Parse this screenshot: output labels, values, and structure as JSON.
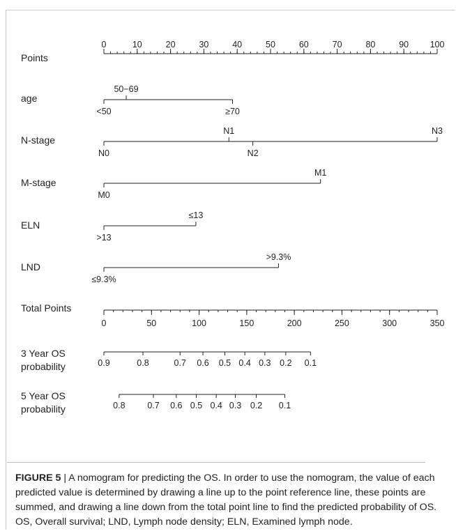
{
  "chart_data": {
    "type": "nomogram",
    "points_scale": {
      "label": "Points",
      "min": 0,
      "max": 100,
      "major_ticks": [
        0,
        10,
        20,
        30,
        40,
        50,
        60,
        70,
        80,
        90,
        100
      ],
      "minor_step": 2
    },
    "variables": [
      {
        "name": "age",
        "line_points": [
          0,
          38.6
        ],
        "levels": [
          {
            "label": "<50",
            "points": 0,
            "side": "below"
          },
          {
            "label": "50−69",
            "points": 6.7,
            "side": "above"
          },
          {
            "label": "≥70",
            "points": 38.6,
            "side": "below"
          }
        ]
      },
      {
        "name": "N-stage",
        "line_points": [
          0,
          100
        ],
        "levels": [
          {
            "label": "N0",
            "points": 0,
            "side": "below"
          },
          {
            "label": "N1",
            "points": 37.5,
            "side": "above"
          },
          {
            "label": "N2",
            "points": 44.7,
            "side": "below"
          },
          {
            "label": "N3",
            "points": 100,
            "side": "above"
          }
        ]
      },
      {
        "name": "M-stage",
        "line_points": [
          0,
          65.0
        ],
        "levels": [
          {
            "label": "M0",
            "points": 0,
            "side": "below"
          },
          {
            "label": "M1",
            "points": 65.0,
            "side": "above"
          }
        ]
      },
      {
        "name": "ELN",
        "line_points": [
          0,
          27.6
        ],
        "levels": [
          {
            "label": ">13",
            "points": 0,
            "side": "below"
          },
          {
            "label": "≤13",
            "points": 27.6,
            "side": "above"
          }
        ]
      },
      {
        "name": "LND",
        "line_points": [
          0,
          52.4
        ],
        "levels": [
          {
            "label": "≤9.3%",
            "points": 0,
            "side": "below"
          },
          {
            "label": ">9.3%",
            "points": 52.4,
            "side": "above"
          }
        ]
      }
    ],
    "total_points_scale": {
      "label": "Total Points",
      "min": 0,
      "max": 350,
      "major_ticks": [
        0,
        50,
        100,
        150,
        200,
        250,
        300,
        350
      ],
      "minor_step": 10
    },
    "probability_scales": [
      {
        "label_lines": [
          "3 Year OS",
          "probability"
        ],
        "ticks": [
          {
            "label": "0.9",
            "total_points": 0
          },
          {
            "label": "0.8",
            "total_points": 41
          },
          {
            "label": "0.7",
            "total_points": 80
          },
          {
            "label": "0.6",
            "total_points": 104
          },
          {
            "label": "0.5",
            "total_points": 127
          },
          {
            "label": "0.4",
            "total_points": 148
          },
          {
            "label": "0.3",
            "total_points": 169
          },
          {
            "label": "0.2",
            "total_points": 191
          },
          {
            "label": "0.1",
            "total_points": 217
          }
        ]
      },
      {
        "label_lines": [
          "5 Year OS",
          "probability"
        ],
        "ticks": [
          {
            "label": "0.8",
            "total_points": 16
          },
          {
            "label": "0.7",
            "total_points": 52
          },
          {
            "label": "0.6",
            "total_points": 76
          },
          {
            "label": "0.5",
            "total_points": 97
          },
          {
            "label": "0.4",
            "total_points": 118
          },
          {
            "label": "0.3",
            "total_points": 138
          },
          {
            "label": "0.2",
            "total_points": 160
          },
          {
            "label": "0.1",
            "total_points": 190
          }
        ]
      }
    ]
  },
  "caption": {
    "label": "FIGURE 5",
    "separator": " | ",
    "text": "A nomogram for predicting the OS. In order to use the nomogram, the value of each predicted value is determined by drawing a line up to the point reference line, these points are summed, and drawing a line down from the total point line to find the predicted probability of OS. OS, Overall survival; LND, Lymph node density; ELN, Examined lymph node."
  }
}
